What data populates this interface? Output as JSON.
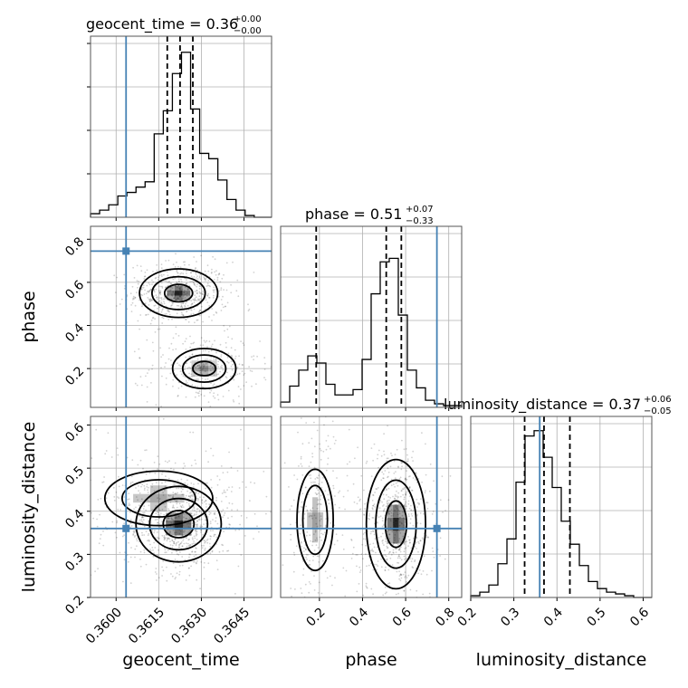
{
  "colors": {
    "truth": "#4682b4",
    "line": "#000000",
    "grid": "#b0b0b0",
    "frame": "#555555",
    "scatter": "#000000"
  },
  "titles": {
    "geocent_time": {
      "main": "geocent_time = 0.36",
      "sup": "+0.00",
      "sub": "−0.00"
    },
    "phase": {
      "main": "phase = 0.51",
      "sup": "+0.07",
      "sub": "−0.33"
    },
    "luminosity_distance": {
      "main": "luminosity_distance = 0.37",
      "sup": "+0.06",
      "sub": "−0.05"
    }
  },
  "axis_labels": {
    "x_geocent_time": "geocent_time",
    "x_phase": "phase",
    "x_luminosity_distance": "luminosity_distance",
    "y_phase": "phase",
    "y_luminosity_distance": "luminosity_distance"
  },
  "chart_data": {
    "type": "corner",
    "parameters": [
      "geocent_time",
      "phase",
      "luminosity_distance"
    ],
    "truths": {
      "geocent_time": 0.36035,
      "phase": 0.745,
      "luminosity_distance": 0.36
    },
    "ranges": {
      "geocent_time": [
        0.3591,
        0.36547
      ],
      "phase": [
        0.02,
        0.86
      ],
      "luminosity_distance": [
        0.2,
        0.62
      ]
    },
    "ticks": {
      "geocent_time": {
        "values": [
          0.36,
          0.3615,
          0.363,
          0.3645
        ],
        "labels": [
          "0.3600",
          "0.3615",
          "0.3630",
          "0.3645"
        ]
      },
      "phase": {
        "values": [
          0.2,
          0.4,
          0.6,
          0.8
        ],
        "labels": [
          "0.2",
          "0.4",
          "0.6",
          "0.8"
        ]
      },
      "luminosity_distance": {
        "values": [
          0.2,
          0.3,
          0.4,
          0.5,
          0.6
        ],
        "labels": [
          "0.2",
          "0.3",
          "0.4",
          "0.5",
          "0.6"
        ]
      }
    },
    "quantiles": {
      "geocent_time": [
        0.3618,
        0.36225,
        0.3627
      ],
      "phase": [
        0.185,
        0.51,
        0.58
      ],
      "luminosity_distance": [
        0.325,
        0.37,
        0.43
      ]
    },
    "histograms": {
      "geocent_time": {
        "edges": [
          0.3591,
          0.35942,
          0.35974,
          0.36006,
          0.36038,
          0.3607,
          0.36102,
          0.36134,
          0.36166,
          0.36198,
          0.3623,
          0.36262,
          0.36294,
          0.36326,
          0.36358,
          0.3639,
          0.36422,
          0.36454,
          0.36486,
          0.36518,
          0.3655
        ],
        "counts": [
          0.02,
          0.04,
          0.07,
          0.12,
          0.14,
          0.17,
          0.2,
          0.47,
          0.6,
          0.81,
          0.93,
          0.61,
          0.36,
          0.33,
          0.21,
          0.1,
          0.04,
          0.01,
          0.0,
          0.0
        ]
      },
      "phase": {
        "edges": [
          0.02,
          0.062,
          0.104,
          0.146,
          0.188,
          0.23,
          0.272,
          0.314,
          0.356,
          0.398,
          0.44,
          0.482,
          0.524,
          0.566,
          0.608,
          0.65,
          0.692,
          0.734,
          0.776,
          0.818,
          0.86
        ],
        "counts": [
          0.03,
          0.12,
          0.21,
          0.29,
          0.25,
          0.13,
          0.07,
          0.07,
          0.1,
          0.27,
          0.64,
          0.82,
          0.84,
          0.52,
          0.21,
          0.11,
          0.04,
          0.02,
          0.01,
          0.01
        ]
      },
      "luminosity_distance": {
        "edges": [
          0.2,
          0.221,
          0.242,
          0.263,
          0.284,
          0.305,
          0.326,
          0.347,
          0.368,
          0.389,
          0.41,
          0.431,
          0.452,
          0.473,
          0.494,
          0.515,
          0.536,
          0.557,
          0.578,
          0.599,
          0.62
        ],
        "counts": [
          0.01,
          0.03,
          0.07,
          0.19,
          0.33,
          0.65,
          0.91,
          0.94,
          0.79,
          0.62,
          0.43,
          0.3,
          0.18,
          0.09,
          0.05,
          0.03,
          0.02,
          0.01,
          0.0,
          0.0
        ]
      }
    },
    "density_modes": {
      "geocent_time_vs_phase": [
        {
          "x": 0.3622,
          "y": 0.55,
          "sx": 0.00055,
          "sy": 0.045,
          "w": 1.0
        },
        {
          "x": 0.3631,
          "y": 0.2,
          "sx": 0.0006,
          "sy": 0.05,
          "w": 0.55
        }
      ],
      "geocent_time_vs_luminosity_distance": [
        {
          "x": 0.3622,
          "y": 0.37,
          "sx": 0.0006,
          "sy": 0.035,
          "w": 1.0
        },
        {
          "x": 0.3615,
          "y": 0.43,
          "sx": 0.0012,
          "sy": 0.04,
          "w": 0.4
        }
      ],
      "phase_vs_luminosity_distance": [
        {
          "x": 0.555,
          "y": 0.37,
          "sx": 0.055,
          "sy": 0.06,
          "w": 1.0
        },
        {
          "x": 0.18,
          "y": 0.38,
          "sx": 0.05,
          "sy": 0.07,
          "w": 0.45
        }
      ]
    }
  }
}
